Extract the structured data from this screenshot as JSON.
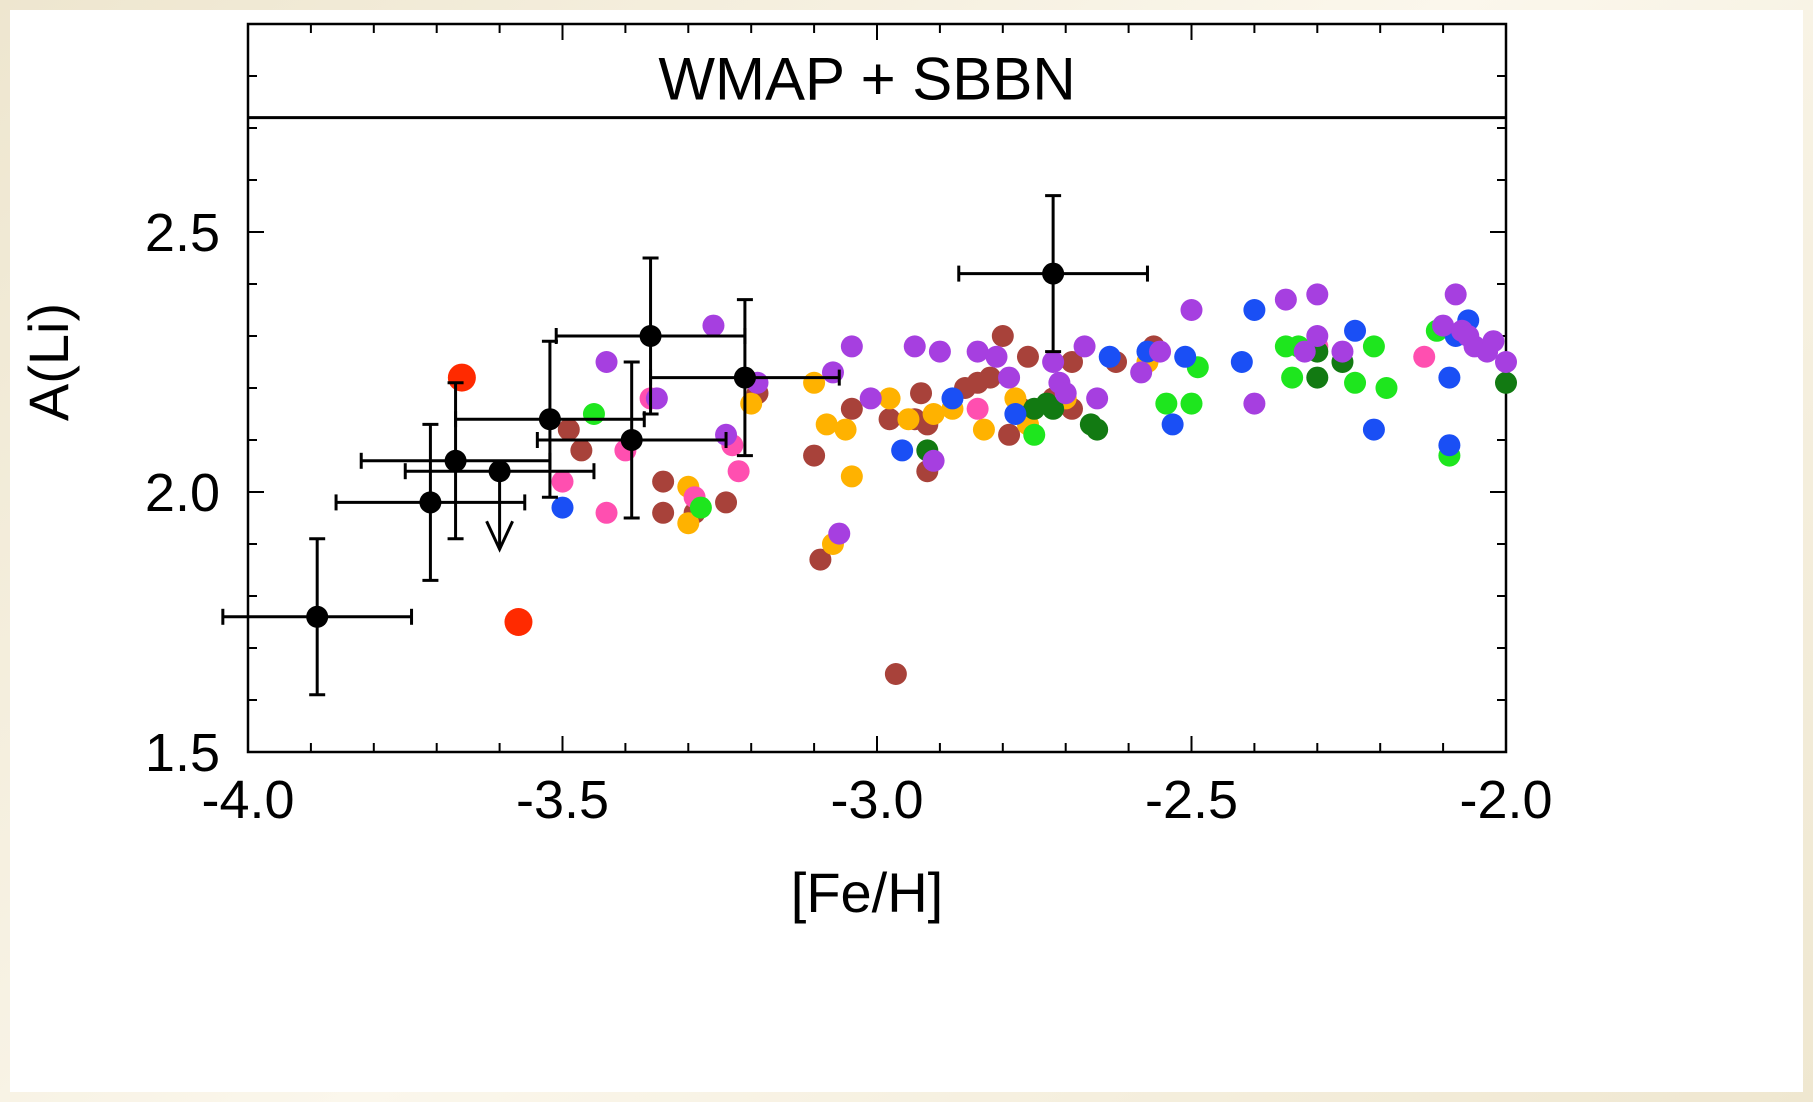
{
  "chart_data": {
    "type": "scatter",
    "xlabel": "[Fe/H]",
    "ylabel": "A(Li)",
    "xlim": [
      -4.0,
      -2.0
    ],
    "ylim": [
      1.5,
      2.9
    ],
    "x_ticks": [
      -4.0,
      -3.5,
      -3.0,
      -2.5,
      -2.0
    ],
    "x_tick_labels": [
      "-4.0",
      "-3.5",
      "-3.0",
      "-2.5",
      "-2.0"
    ],
    "y_ticks": [
      1.5,
      2.0,
      2.5
    ],
    "y_tick_labels": [
      "1.5",
      "2.0",
      "2.5"
    ],
    "reference_line": {
      "y": 2.72,
      "label": "WMAP + SBBN"
    },
    "colors": {
      "black": "#000000",
      "red": "#ff2a00",
      "blue": "#1a4ff5",
      "purple": "#a63fe0",
      "brown": "#a8423a",
      "orange": "#ffb200",
      "pink": "#ff4fb0",
      "lime": "#1ee61e",
      "darkgreen": "#127a12"
    },
    "series": [
      {
        "color": "black",
        "points": [
          {
            "x": -3.89,
            "y": 1.76,
            "xerr": 0.15,
            "yerr": 0.15
          },
          {
            "x": -3.71,
            "y": 1.98,
            "xerr": 0.15,
            "yerr": 0.15
          },
          {
            "x": -3.67,
            "y": 2.06,
            "xerr": 0.15,
            "yerr": 0.15
          },
          {
            "x": -3.6,
            "y": 2.04,
            "xerr": 0.15,
            "upper_limit": true
          },
          {
            "x": -3.52,
            "y": 2.14,
            "xerr": 0.15,
            "yerr": 0.15
          },
          {
            "x": -3.39,
            "y": 2.1,
            "xerr": 0.15,
            "yerr": 0.15
          },
          {
            "x": -3.36,
            "y": 2.3,
            "xerr": 0.15,
            "yerr": 0.15
          },
          {
            "x": -3.21,
            "y": 2.22,
            "xerr": 0.15,
            "yerr": 0.15
          },
          {
            "x": -2.72,
            "y": 2.42,
            "xerr": 0.15,
            "yerr": 0.15
          }
        ]
      },
      {
        "color": "red",
        "points": [
          {
            "x": -3.66,
            "y": 2.22
          },
          {
            "x": -3.57,
            "y": 1.75
          }
        ]
      },
      {
        "color": "blue",
        "points": [
          {
            "x": -3.5,
            "y": 1.97
          },
          {
            "x": -2.96,
            "y": 2.08
          },
          {
            "x": -2.88,
            "y": 2.18
          },
          {
            "x": -2.78,
            "y": 2.15
          },
          {
            "x": -2.63,
            "y": 2.26
          },
          {
            "x": -2.57,
            "y": 2.27
          },
          {
            "x": -2.53,
            "y": 2.13
          },
          {
            "x": -2.51,
            "y": 2.26
          },
          {
            "x": -2.42,
            "y": 2.25
          },
          {
            "x": -2.4,
            "y": 2.35
          },
          {
            "x": -2.24,
            "y": 2.31
          },
          {
            "x": -2.21,
            "y": 2.12
          },
          {
            "x": -2.09,
            "y": 2.22
          },
          {
            "x": -2.09,
            "y": 2.09
          },
          {
            "x": -2.08,
            "y": 2.3
          },
          {
            "x": -2.06,
            "y": 2.33
          }
        ]
      },
      {
        "color": "purple",
        "points": [
          {
            "x": -3.43,
            "y": 2.25
          },
          {
            "x": -3.35,
            "y": 2.18
          },
          {
            "x": -3.26,
            "y": 2.32
          },
          {
            "x": -3.24,
            "y": 2.11
          },
          {
            "x": -3.19,
            "y": 2.21
          },
          {
            "x": -3.07,
            "y": 2.23
          },
          {
            "x": -3.06,
            "y": 1.92
          },
          {
            "x": -3.04,
            "y": 2.28
          },
          {
            "x": -3.01,
            "y": 2.18
          },
          {
            "x": -2.94,
            "y": 2.28
          },
          {
            "x": -2.91,
            "y": 2.06
          },
          {
            "x": -2.9,
            "y": 2.27
          },
          {
            "x": -2.84,
            "y": 2.27
          },
          {
            "x": -2.81,
            "y": 2.26
          },
          {
            "x": -2.79,
            "y": 2.22
          },
          {
            "x": -2.72,
            "y": 2.25
          },
          {
            "x": -2.71,
            "y": 2.21
          },
          {
            "x": -2.7,
            "y": 2.19
          },
          {
            "x": -2.67,
            "y": 2.28
          },
          {
            "x": -2.65,
            "y": 2.18
          },
          {
            "x": -2.58,
            "y": 2.23
          },
          {
            "x": -2.55,
            "y": 2.27
          },
          {
            "x": -2.5,
            "y": 2.35
          },
          {
            "x": -2.4,
            "y": 2.17
          },
          {
            "x": -2.35,
            "y": 2.37
          },
          {
            "x": -2.32,
            "y": 2.27
          },
          {
            "x": -2.3,
            "y": 2.38
          },
          {
            "x": -2.3,
            "y": 2.3
          },
          {
            "x": -2.26,
            "y": 2.27
          },
          {
            "x": -2.1,
            "y": 2.32
          },
          {
            "x": -2.08,
            "y": 2.38
          },
          {
            "x": -2.07,
            "y": 2.31
          },
          {
            "x": -2.06,
            "y": 2.3
          },
          {
            "x": -2.05,
            "y": 2.28
          },
          {
            "x": -2.03,
            "y": 2.27
          },
          {
            "x": -2.02,
            "y": 2.29
          },
          {
            "x": -2.0,
            "y": 2.25
          }
        ]
      },
      {
        "color": "brown",
        "points": [
          {
            "x": -3.49,
            "y": 2.12
          },
          {
            "x": -3.47,
            "y": 2.08
          },
          {
            "x": -3.34,
            "y": 2.02
          },
          {
            "x": -3.34,
            "y": 1.96
          },
          {
            "x": -3.29,
            "y": 1.96
          },
          {
            "x": -3.24,
            "y": 1.98
          },
          {
            "x": -3.19,
            "y": 2.19
          },
          {
            "x": -3.1,
            "y": 2.07
          },
          {
            "x": -3.09,
            "y": 1.87
          },
          {
            "x": -3.04,
            "y": 2.16
          },
          {
            "x": -2.98,
            "y": 2.14
          },
          {
            "x": -2.97,
            "y": 1.65
          },
          {
            "x": -2.94,
            "y": 2.14
          },
          {
            "x": -2.93,
            "y": 2.19
          },
          {
            "x": -2.92,
            "y": 2.13
          },
          {
            "x": -2.92,
            "y": 2.04
          },
          {
            "x": -2.86,
            "y": 2.2
          },
          {
            "x": -2.84,
            "y": 2.21
          },
          {
            "x": -2.82,
            "y": 2.22
          },
          {
            "x": -2.8,
            "y": 2.3
          },
          {
            "x": -2.79,
            "y": 2.11
          },
          {
            "x": -2.77,
            "y": 2.16
          },
          {
            "x": -2.76,
            "y": 2.26
          },
          {
            "x": -2.72,
            "y": 2.18
          },
          {
            "x": -2.69,
            "y": 2.25
          },
          {
            "x": -2.69,
            "y": 2.16
          },
          {
            "x": -2.62,
            "y": 2.25
          },
          {
            "x": -2.56,
            "y": 2.28
          }
        ]
      },
      {
        "color": "orange",
        "points": [
          {
            "x": -3.3,
            "y": 2.01
          },
          {
            "x": -3.3,
            "y": 1.94
          },
          {
            "x": -3.2,
            "y": 2.17
          },
          {
            "x": -3.1,
            "y": 2.21
          },
          {
            "x": -3.08,
            "y": 2.13
          },
          {
            "x": -3.07,
            "y": 1.9
          },
          {
            "x": -3.05,
            "y": 2.12
          },
          {
            "x": -3.04,
            "y": 2.03
          },
          {
            "x": -2.98,
            "y": 2.18
          },
          {
            "x": -2.95,
            "y": 2.14
          },
          {
            "x": -2.91,
            "y": 2.15
          },
          {
            "x": -2.88,
            "y": 2.16
          },
          {
            "x": -2.83,
            "y": 2.12
          },
          {
            "x": -2.78,
            "y": 2.18
          },
          {
            "x": -2.76,
            "y": 2.13
          },
          {
            "x": -2.7,
            "y": 2.18
          },
          {
            "x": -2.57,
            "y": 2.25
          }
        ]
      },
      {
        "color": "pink",
        "points": [
          {
            "x": -3.5,
            "y": 2.02
          },
          {
            "x": -3.43,
            "y": 1.96
          },
          {
            "x": -3.4,
            "y": 2.08
          },
          {
            "x": -3.36,
            "y": 2.18
          },
          {
            "x": -3.29,
            "y": 1.99
          },
          {
            "x": -3.23,
            "y": 2.09
          },
          {
            "x": -3.22,
            "y": 2.04
          },
          {
            "x": -2.84,
            "y": 2.16
          },
          {
            "x": -2.3,
            "y": 2.28
          },
          {
            "x": -2.13,
            "y": 2.26
          }
        ]
      },
      {
        "color": "lime",
        "points": [
          {
            "x": -3.45,
            "y": 2.15
          },
          {
            "x": -3.28,
            "y": 1.97
          },
          {
            "x": -2.75,
            "y": 2.11
          },
          {
            "x": -2.54,
            "y": 2.17
          },
          {
            "x": -2.5,
            "y": 2.17
          },
          {
            "x": -2.49,
            "y": 2.24
          },
          {
            "x": -2.35,
            "y": 2.28
          },
          {
            "x": -2.34,
            "y": 2.22
          },
          {
            "x": -2.33,
            "y": 2.28
          },
          {
            "x": -2.24,
            "y": 2.21
          },
          {
            "x": -2.21,
            "y": 2.28
          },
          {
            "x": -2.19,
            "y": 2.2
          },
          {
            "x": -2.11,
            "y": 2.31
          },
          {
            "x": -2.09,
            "y": 2.07
          }
        ]
      },
      {
        "color": "darkgreen",
        "points": [
          {
            "x": -2.92,
            "y": 2.08
          },
          {
            "x": -2.75,
            "y": 2.16
          },
          {
            "x": -2.73,
            "y": 2.17
          },
          {
            "x": -2.72,
            "y": 2.16
          },
          {
            "x": -2.66,
            "y": 2.13
          },
          {
            "x": -2.65,
            "y": 2.12
          },
          {
            "x": -2.3,
            "y": 2.27
          },
          {
            "x": -2.3,
            "y": 2.22
          },
          {
            "x": -2.26,
            "y": 2.25
          },
          {
            "x": -2.0,
            "y": 2.21
          }
        ]
      }
    ]
  }
}
